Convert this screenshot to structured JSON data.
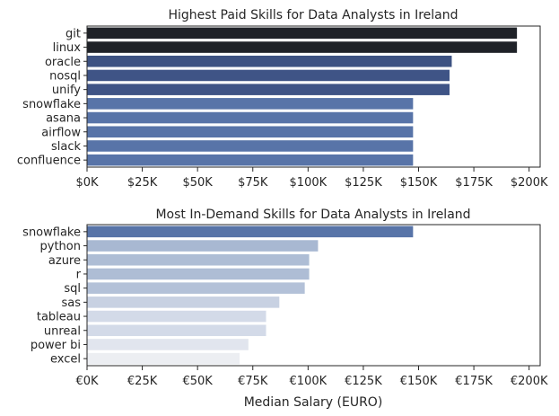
{
  "chart_data": [
    {
      "type": "bar",
      "orientation": "horizontal",
      "title": "Highest Paid Skills for Data Analysts in Ireland",
      "xlabel": "",
      "ylabel": "",
      "categories": [
        "git",
        "linux",
        "oracle",
        "nosql",
        "unify",
        "snowflake",
        "asana",
        "airflow",
        "slack",
        "confluence"
      ],
      "values": [
        194500,
        194500,
        165000,
        164000,
        164000,
        147500,
        147500,
        147500,
        147500,
        147500
      ],
      "colors": [
        "#1f2228",
        "#1f2228",
        "#3d5282",
        "#3f5486",
        "#3f5486",
        "#5874a8",
        "#5874a8",
        "#5874a8",
        "#5874a8",
        "#5874a8"
      ],
      "xlim": [
        0,
        205000
      ],
      "xticks": [
        0,
        25000,
        50000,
        75000,
        100000,
        125000,
        150000,
        175000,
        200000
      ],
      "xtick_labels": [
        "$0K",
        "$25K",
        "$50K",
        "$75K",
        "$100K",
        "$125K",
        "$150K",
        "$175K",
        "$200K"
      ],
      "grid": false
    },
    {
      "type": "bar",
      "orientation": "horizontal",
      "title": "Most In-Demand Skills for Data Analysts in Ireland",
      "xlabel": "Median Salary (EURO)",
      "ylabel": "",
      "categories": [
        "snowflake",
        "python",
        "azure",
        "r",
        "sql",
        "sas",
        "tableau",
        "unreal",
        "power bi",
        "excel"
      ],
      "values": [
        147500,
        104500,
        100500,
        100500,
        98500,
        87000,
        81000,
        81000,
        73000,
        69000
      ],
      "colors": [
        "#5874a8",
        "#a8b8d2",
        "#aebdd5",
        "#aebdd5",
        "#b3c1d8",
        "#c8d1e2",
        "#d3dae8",
        "#d3dae8",
        "#e1e5ee",
        "#eceef2"
      ],
      "xlim": [
        0,
        205000
      ],
      "xticks": [
        0,
        25000,
        50000,
        75000,
        100000,
        125000,
        150000,
        175000,
        200000
      ],
      "xtick_labels": [
        "€0K",
        "€25K",
        "€50K",
        "€75K",
        "€100K",
        "€125K",
        "€150K",
        "€175K",
        "€200K"
      ],
      "grid": false
    }
  ]
}
